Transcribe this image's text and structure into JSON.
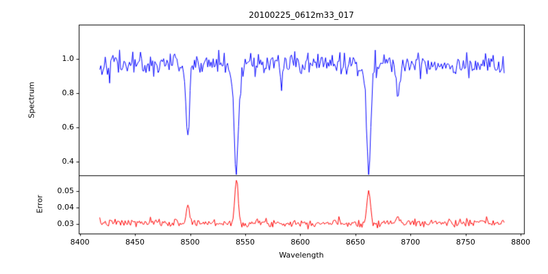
{
  "figure": {
    "background": "#ffffff",
    "axes_color": "#000000"
  },
  "chart_data": {
    "type": "line",
    "title": "20100225_0612m33_017",
    "xlabel": "Wavelength",
    "xlim": [
      8399,
      8803
    ],
    "x_ticks": [
      8400,
      8450,
      8500,
      8550,
      8600,
      8650,
      8700,
      8750,
      8800
    ],
    "x_start": 8418,
    "x_end": 8785,
    "n_points": 368,
    "legend": "none",
    "grid": false,
    "panels": [
      {
        "name": "spectrum",
        "ylabel": "Spectrum",
        "ylim": [
          0.32,
          1.2
        ],
        "y_ticks": [
          0.4,
          0.6,
          0.8,
          1.0
        ],
        "tick_decimals": 1,
        "color": "#0000ff",
        "baseline": 0.97,
        "noise_sigma": 0.034,
        "seed": 42,
        "absorption_lines": [
          {
            "center": 8498.0,
            "depth": 0.42,
            "sigma": 1.6
          },
          {
            "center": 8542.1,
            "depth": 0.62,
            "sigma": 2.2
          },
          {
            "center": 8583.0,
            "depth": 0.15,
            "sigma": 0.9
          },
          {
            "center": 8662.1,
            "depth": 0.58,
            "sigma": 2.0
          },
          {
            "center": 8688.6,
            "depth": 0.22,
            "sigma": 1.4
          }
        ]
      },
      {
        "name": "error",
        "ylabel": "Error",
        "ylim": [
          0.024,
          0.0595
        ],
        "y_ticks": [
          0.03,
          0.04,
          0.05
        ],
        "tick_decimals": 2,
        "color": "#ff0000",
        "baseline": 0.0305,
        "noise_sigma": 0.0012,
        "seed": 7,
        "spikes": [
          {
            "center": 8498.0,
            "amp": 0.011,
            "sigma": 1.4
          },
          {
            "center": 8542.1,
            "amp": 0.026,
            "sigma": 1.5
          },
          {
            "center": 8662.1,
            "amp": 0.02,
            "sigma": 1.5
          },
          {
            "center": 8688.6,
            "amp": 0.004,
            "sigma": 1.2
          }
        ]
      }
    ]
  }
}
